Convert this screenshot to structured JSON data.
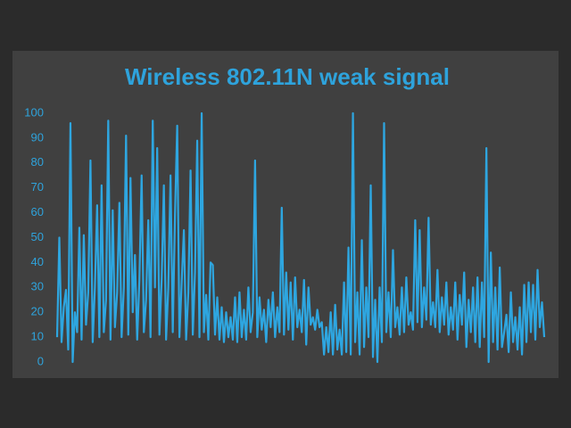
{
  "chart_data": {
    "type": "line",
    "title": "Wireless 802.11N weak signal",
    "color": "#2ea6e0",
    "ylim": [
      0,
      100
    ],
    "yticks": [
      0,
      10,
      20,
      30,
      40,
      50,
      60,
      70,
      80,
      90,
      100
    ],
    "values": [
      10,
      50,
      8,
      22,
      29,
      5,
      96,
      0,
      20,
      12,
      54,
      9,
      51,
      15,
      28,
      81,
      8,
      30,
      63,
      10,
      71,
      12,
      25,
      97,
      9,
      61,
      14,
      28,
      64,
      10,
      30,
      91,
      11,
      74,
      20,
      43,
      9,
      33,
      75,
      12,
      25,
      57,
      10,
      97,
      30,
      86,
      11,
      33,
      71,
      9,
      30,
      75,
      12,
      59,
      95,
      10,
      32,
      53,
      9,
      28,
      77,
      11,
      36,
      89,
      10,
      100,
      12,
      27,
      9,
      40,
      39,
      11,
      26,
      9,
      22,
      8,
      20,
      10,
      18,
      9,
      26,
      8,
      28,
      10,
      21,
      9,
      30,
      12,
      20,
      81,
      10,
      26,
      13,
      21,
      8,
      25,
      14,
      28,
      10,
      22,
      12,
      62,
      11,
      36,
      13,
      32,
      9,
      34,
      14,
      21,
      12,
      33,
      7,
      30,
      15,
      18,
      13,
      21,
      14,
      16,
      3,
      14,
      4,
      20,
      3,
      23,
      5,
      13,
      3,
      32,
      4,
      46,
      3,
      100,
      8,
      28,
      3,
      49,
      6,
      30,
      10,
      71,
      2,
      25,
      0,
      30,
      8,
      96,
      12,
      28,
      10,
      45,
      14,
      22,
      11,
      30,
      12,
      34,
      15,
      20,
      13,
      57,
      16,
      53,
      14,
      30,
      17,
      58,
      15,
      24,
      14,
      37,
      12,
      26,
      15,
      32,
      11,
      22,
      13,
      32,
      9,
      27,
      15,
      36,
      6,
      25,
      12,
      30,
      8,
      34,
      6,
      32,
      10,
      86,
      0,
      44,
      8,
      30,
      5,
      38,
      6,
      12,
      19,
      4,
      28,
      8,
      18,
      5,
      22,
      3,
      31,
      8,
      32,
      12,
      31,
      9,
      37,
      14,
      24,
      10
    ]
  }
}
